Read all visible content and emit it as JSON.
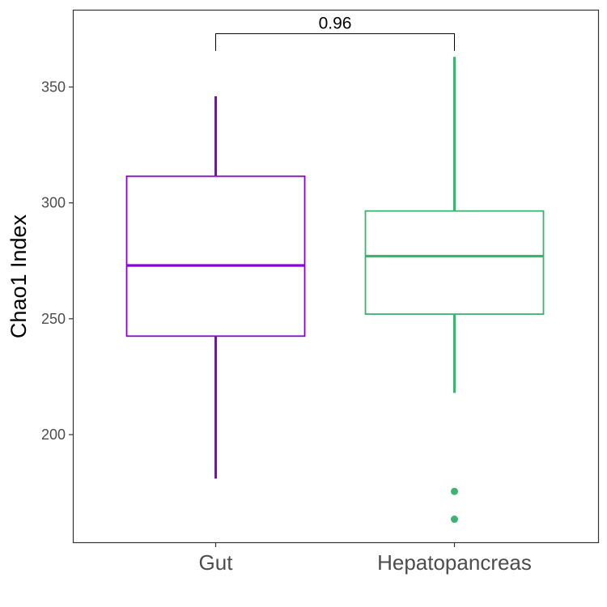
{
  "chart_data": {
    "type": "box",
    "ylabel": "Chao1 Index",
    "xlabel": "",
    "ylim": [
      155,
      385
    ],
    "yticks": [
      200,
      250,
      300,
      350
    ],
    "categories": [
      "Gut",
      "Hepatopancreas"
    ],
    "boxes": [
      {
        "category": "Gut",
        "color": "#8a00d4",
        "whisker_low": 181,
        "q1": 242.5,
        "median": 273,
        "q3": 311.5,
        "whisker_high": 346,
        "outliers": []
      },
      {
        "category": "Hepatopancreas",
        "color": "#3cb371",
        "whisker_low": 218,
        "q1": 252,
        "median": 277,
        "q3": 296.5,
        "whisker_high": 363,
        "outliers": [
          175.5,
          163.5
        ]
      }
    ],
    "comparison": {
      "groups": [
        "Gut",
        "Hepatopancreas"
      ],
      "p_value": "0.96",
      "bracket_y": 373,
      "tick_bottom": 367
    },
    "grid": false
  }
}
